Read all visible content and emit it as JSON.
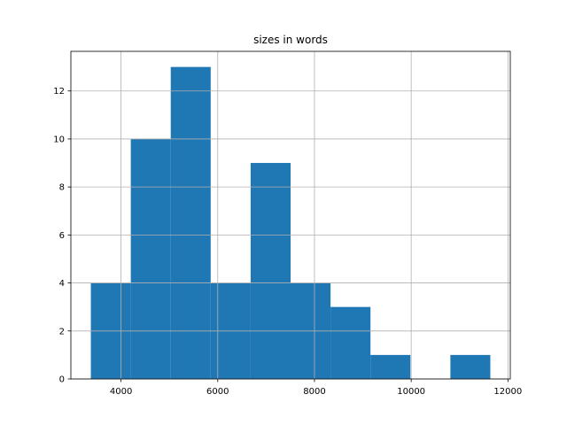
{
  "chart_data": {
    "type": "histogram",
    "title": "sizes in words",
    "bins": [
      3376,
      4202,
      5028,
      5854,
      6680,
      7506,
      8332,
      9158,
      9984,
      10810,
      11636
    ],
    "values": [
      4,
      10,
      13,
      4,
      9,
      4,
      3,
      1,
      0,
      1
    ],
    "color": "#1f77b4",
    "xlim": [
      2963,
      12049
    ],
    "xticks": [
      4000,
      6000,
      8000,
      10000,
      12000
    ],
    "ylim": [
      0,
      13.65
    ],
    "yticks": [
      0,
      2,
      4,
      6,
      8,
      10,
      12
    ],
    "grid": true
  }
}
